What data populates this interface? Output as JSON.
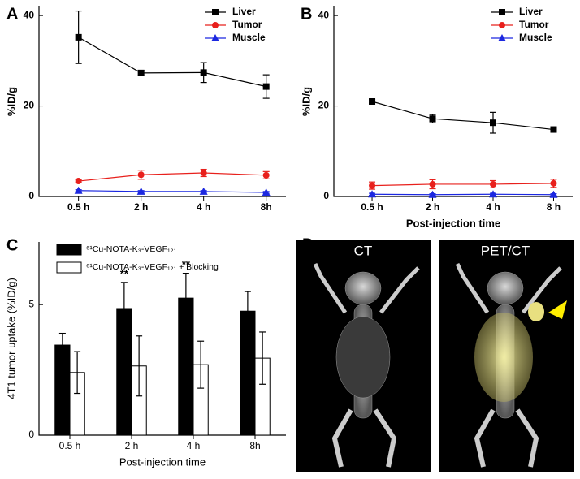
{
  "chart_data": [
    {
      "type": "line",
      "panel_label": "A",
      "ylabel": "%ID/g",
      "categories": [
        "0.5 h",
        "2 h",
        "4 h",
        "8h"
      ],
      "ylim": [
        0,
        42
      ],
      "yticks": [
        0,
        20,
        40
      ],
      "legend": "upper right",
      "series": [
        {
          "name": "Liver",
          "color": "#000000",
          "marker": "square",
          "values": [
            35.2,
            27.3,
            27.4,
            24.3
          ],
          "errors": [
            5.8,
            0.6,
            2.2,
            2.6
          ]
        },
        {
          "name": "Tumor",
          "color": "#e8201c",
          "marker": "circle",
          "values": [
            3.4,
            4.8,
            5.2,
            4.7
          ],
          "errors": [
            0.3,
            1.0,
            0.8,
            0.8
          ]
        },
        {
          "name": "Muscle",
          "color": "#1c28e0",
          "marker": "triangle",
          "values": [
            1.3,
            1.1,
            1.1,
            0.9
          ],
          "errors": [
            0.2,
            0.2,
            0.2,
            0.2
          ]
        }
      ]
    },
    {
      "type": "line",
      "panel_label": "B",
      "ylabel": "%ID/g",
      "xlabel": "Post-injection time",
      "categories": [
        "0.5 h",
        "2 h",
        "4 h",
        "8 h"
      ],
      "ylim": [
        0,
        42
      ],
      "yticks": [
        0,
        20,
        40
      ],
      "legend": "upper right",
      "series": [
        {
          "name": "Liver",
          "color": "#000000",
          "marker": "square",
          "values": [
            21.0,
            17.2,
            16.3,
            14.8
          ],
          "errors": [
            0.4,
            0.9,
            2.3,
            0.5
          ]
        },
        {
          "name": "Tumor",
          "color": "#e8201c",
          "marker": "circle",
          "values": [
            2.4,
            2.7,
            2.7,
            2.9
          ],
          "errors": [
            0.8,
            1.0,
            0.8,
            0.9
          ]
        },
        {
          "name": "Muscle",
          "color": "#1c28e0",
          "marker": "triangle",
          "values": [
            0.5,
            0.4,
            0.5,
            0.4
          ],
          "errors": [
            0.2,
            0.2,
            0.2,
            0.2
          ]
        }
      ]
    },
    {
      "type": "bar",
      "panel_label": "C",
      "ylabel": "4T1 tumor uptake (%ID/g)",
      "xlabel": "Post-injection time",
      "categories": [
        "0.5 h",
        "2 h",
        "4 h",
        "8h"
      ],
      "ylim": [
        0,
        7.4
      ],
      "yticks": [
        0,
        5
      ],
      "legend": "upper left",
      "bar_annotations": [
        null,
        "**",
        "**",
        null
      ],
      "series": [
        {
          "name": "⁶¹Cu-NOTA-K₃-VEGF₁₂₁",
          "color": "#000000",
          "values": [
            3.45,
            4.85,
            5.25,
            4.75
          ],
          "errors": [
            0.45,
            1.0,
            0.95,
            0.75
          ]
        },
        {
          "name": "⁶¹Cu-NOTA-K₃-VEGF₁₂₁ + Blocking",
          "color": "#ffffff",
          "values": [
            2.4,
            2.65,
            2.7,
            2.95
          ],
          "errors": [
            0.8,
            1.15,
            0.9,
            1.0
          ]
        }
      ]
    }
  ],
  "images": {
    "panel_label": "D",
    "titles": [
      "CT",
      "PET/CT"
    ]
  }
}
